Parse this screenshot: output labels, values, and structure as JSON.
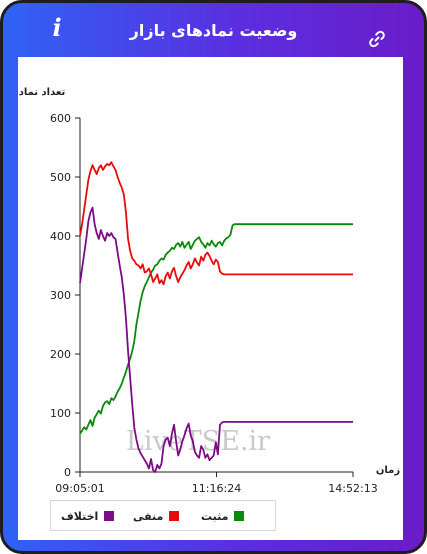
{
  "header": {
    "title": "وضعیت نمادهای بازار",
    "info_glyph": "i",
    "icons": {
      "info": "info-icon",
      "link": "link-icon"
    }
  },
  "watermark": "LiveTSE.ir",
  "chart_data": {
    "type": "line",
    "title": "",
    "ylabel": "تعداد نماد",
    "xlabel": "زمان",
    "ylim": [
      0,
      600
    ],
    "yticks": [
      0,
      100,
      200,
      300,
      400,
      500,
      600
    ],
    "xticks": [
      "09:05:01",
      "11:16:24",
      "14:52:13"
    ],
    "x": [
      0,
      3,
      6,
      9,
      12,
      15,
      18,
      21,
      24,
      27,
      30,
      33,
      36,
      39,
      42,
      45,
      48,
      51,
      54,
      57,
      60,
      63,
      66,
      69,
      72,
      75,
      78,
      81,
      84,
      87,
      90,
      93,
      96,
      99,
      102,
      105,
      108,
      111,
      114,
      117,
      120,
      123,
      126,
      129,
      132,
      135,
      138,
      141,
      144,
      147,
      150,
      153,
      156,
      159,
      162,
      165,
      168,
      171,
      174,
      177,
      180,
      183,
      186,
      189,
      192,
      195,
      198,
      201,
      204,
      207,
      210,
      213,
      216,
      219,
      222,
      225,
      228,
      231,
      234,
      237,
      240,
      243,
      246,
      249,
      252,
      255,
      258,
      261,
      264,
      267,
      270,
      273,
      276,
      279,
      282,
      285,
      288,
      291,
      294,
      297,
      300,
      303,
      306,
      309,
      312,
      315,
      318,
      321,
      324,
      327,
      330,
      333,
      336,
      339,
      342,
      345,
      348,
      351,
      354,
      357,
      360,
      363,
      366,
      369,
      372,
      375,
      378,
      381,
      384,
      387,
      390
    ],
    "x_end": 392,
    "series": [
      {
        "name": "مثبت",
        "color": "#0a8a0a",
        "values": [
          65,
          70,
          76,
          72,
          80,
          88,
          78,
          92,
          98,
          104,
          99,
          112,
          118,
          120,
          115,
          125,
          122,
          128,
          136,
          142,
          150,
          160,
          170,
          182,
          192,
          205,
          222,
          250,
          270,
          290,
          305,
          315,
          322,
          330,
          338,
          343,
          350,
          352,
          358,
          362,
          360,
          368,
          372,
          375,
          380,
          378,
          385,
          388,
          382,
          390,
          380,
          385,
          390,
          378,
          385,
          392,
          395,
          398,
          390,
          386,
          380,
          388,
          384,
          392,
          386,
          382,
          388,
          390,
          384,
          392,
          396,
          398,
          402,
          418,
          420,
          420,
          420,
          420,
          420,
          420,
          420,
          420,
          420,
          420,
          420,
          420,
          420,
          420,
          420,
          420,
          420,
          420,
          420,
          420,
          420,
          420,
          420,
          420,
          420,
          420,
          420,
          420,
          420,
          420,
          420,
          420,
          420,
          420,
          420,
          420,
          420,
          420,
          420,
          420,
          420,
          420,
          420,
          420,
          420,
          420,
          420,
          420,
          420,
          420,
          420,
          420,
          420,
          420,
          420,
          420,
          420
        ]
      },
      {
        "name": "منفی",
        "color": "#e80b0b",
        "values": [
          400,
          420,
          445,
          470,
          495,
          510,
          520,
          512,
          505,
          515,
          520,
          512,
          518,
          522,
          520,
          525,
          518,
          512,
          500,
          490,
          482,
          470,
          440,
          395,
          375,
          362,
          358,
          352,
          350,
          345,
          352,
          338,
          340,
          345,
          335,
          322,
          328,
          335,
          320,
          325,
          318,
          332,
          338,
          328,
          340,
          346,
          332,
          322,
          330,
          336,
          342,
          350,
          356,
          345,
          352,
          362,
          355,
          350,
          365,
          358,
          368,
          372,
          366,
          358,
          352,
          360,
          356,
          340,
          336,
          335,
          335,
          335,
          335,
          335,
          335,
          335,
          335,
          335,
          335,
          335,
          335,
          335,
          335,
          335,
          335,
          335,
          335,
          335,
          335,
          335,
          335,
          335,
          335,
          335,
          335,
          335,
          335,
          335,
          335,
          335,
          335,
          335,
          335,
          335,
          335,
          335,
          335,
          335,
          335,
          335,
          335,
          335,
          335,
          335,
          335,
          335,
          335,
          335,
          335,
          335,
          335,
          335,
          335,
          335,
          335,
          335,
          335,
          335,
          335,
          335,
          335
        ]
      },
      {
        "name": "اختلاف",
        "color": "#7d0a86",
        "values": [
          320,
          345,
          370,
          395,
          425,
          440,
          448,
          420,
          405,
          395,
          410,
          400,
          392,
          405,
          400,
          405,
          398,
          395,
          372,
          350,
          330,
          300,
          260,
          205,
          160,
          115,
          75,
          55,
          40,
          32,
          26,
          20,
          14,
          6,
          22,
          3,
          0,
          12,
          6,
          14,
          44,
          55,
          58,
          44,
          65,
          80,
          52,
          28,
          38,
          52,
          62,
          74,
          82,
          62,
          52,
          34,
          28,
          24,
          44,
          38,
          24,
          30,
          20,
          24,
          28,
          50,
          30,
          80,
          84,
          85,
          85,
          85,
          85,
          85,
          85,
          85,
          85,
          85,
          85,
          85,
          85,
          85,
          85,
          85,
          85,
          85,
          85,
          85,
          85,
          85,
          85,
          85,
          85,
          85,
          85,
          85,
          85,
          85,
          85,
          85,
          85,
          85,
          85,
          85,
          85,
          85,
          85,
          85,
          85,
          85,
          85,
          85,
          85,
          85,
          85,
          85,
          85,
          85,
          85,
          85,
          85,
          85,
          85,
          85,
          85,
          85,
          85,
          85,
          85,
          85,
          85
        ]
      }
    ],
    "legend_order": [
      "مثبت",
      "منفی",
      "اختلاف"
    ],
    "grid": false
  }
}
